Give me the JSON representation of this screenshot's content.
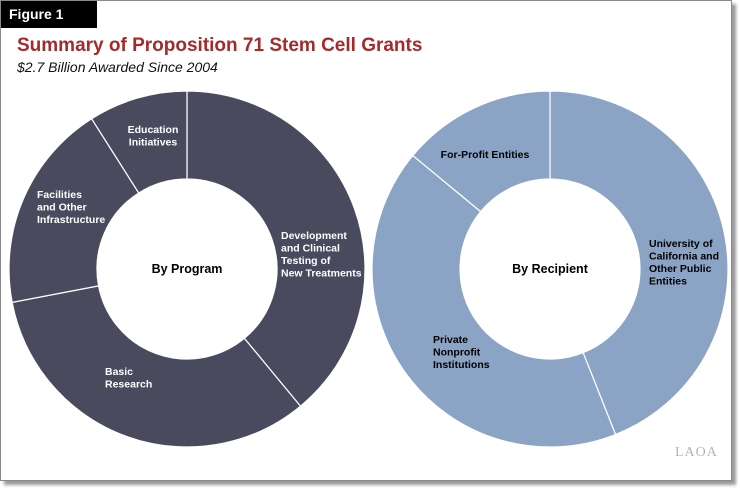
{
  "figure_label": "Figure 1",
  "watermark": "LAOA",
  "colors": {
    "program": "#4a4a5e",
    "recipient": "#8ba3c4",
    "divider": "#ffffff",
    "title": "#a52a2a"
  },
  "chart_data": [
    {
      "type": "pie",
      "title": "Summary of Proposition 71 Stem Cell Grants",
      "subtitle": "$2.7 Billion Awarded Since 2004",
      "center_label": "By Program",
      "slices": [
        {
          "label": "Development and Clinical Testing of New Treatments",
          "lines": [
            "Development",
            "and Clinical",
            "Testing of",
            "New Treatments"
          ],
          "value": 39
        },
        {
          "label": "Basic Research",
          "lines": [
            "Basic",
            "Research"
          ],
          "value": 33
        },
        {
          "label": "Facilities and Other Infrastructure",
          "lines": [
            "Facilities",
            "and Other",
            "Infrastructure"
          ],
          "value": 19
        },
        {
          "label": "Education Initiatives",
          "lines": [
            "Education",
            "Initiatives"
          ],
          "value": 9
        }
      ]
    },
    {
      "type": "pie",
      "center_label": "By Recipient",
      "slices": [
        {
          "label": "University of California and Other Public Entities",
          "lines": [
            "University of",
            "California and",
            "Other Public",
            "Entities"
          ],
          "value": 44
        },
        {
          "label": "Private Nonprofit Institutions",
          "lines": [
            "Private",
            "Nonprofit",
            "Institutions"
          ],
          "value": 42
        },
        {
          "label": "For-Profit Entities",
          "lines": [
            "For-Profit Entities"
          ],
          "value": 14
        }
      ]
    }
  ]
}
